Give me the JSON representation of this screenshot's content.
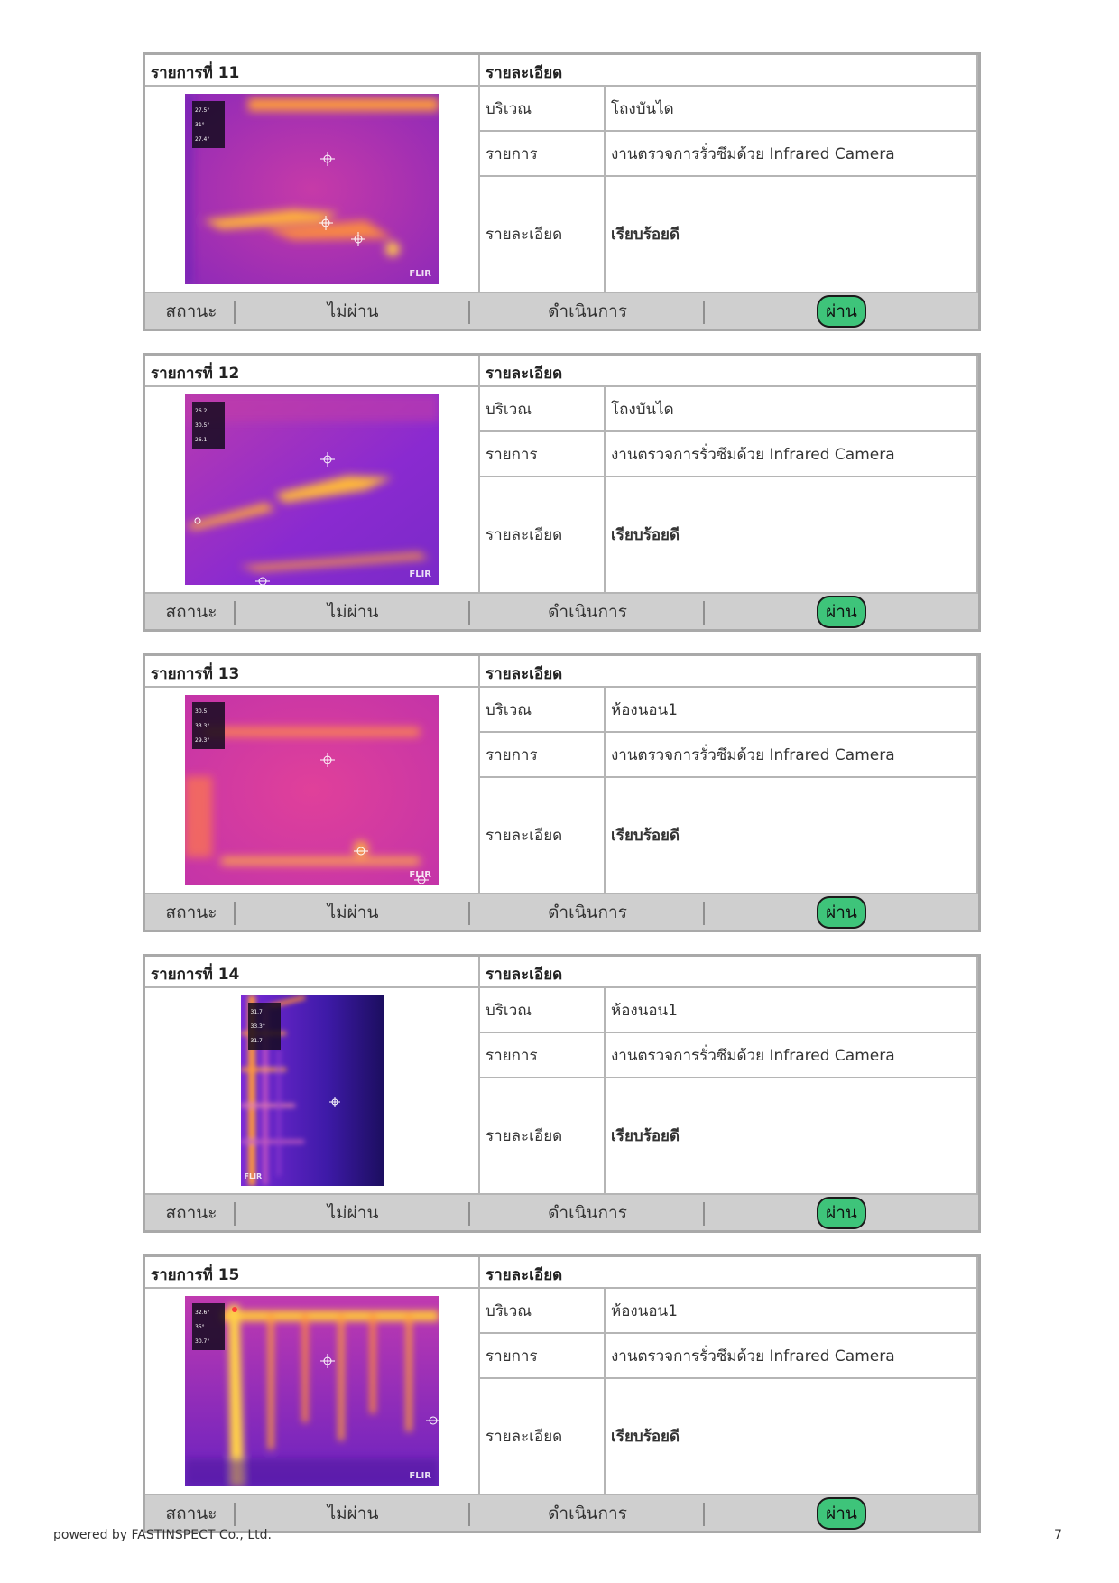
{
  "labels": {
    "detail_header": "รายละเอียด",
    "area": "บริเวณ",
    "item": "รายการ",
    "detail": "รายละเอียด",
    "status": "สถานะ",
    "fail": "ไม่ผ่าน",
    "in_progress": "ดำเนินการ",
    "pass": "ผ่าน",
    "brand": "FLIR"
  },
  "items": [
    {
      "title": "รายการที่ 11",
      "area": "โถงบันได",
      "task": "งานตรวจการรั่วซึมด้วย Infrared Camera",
      "result": "เรียบร้อยดี",
      "readings": [
        "27.5°",
        "31°",
        "27.4°"
      ],
      "selected_status": "pass"
    },
    {
      "title": "รายการที่ 12",
      "area": "โถงบันได",
      "task": "งานตรวจการรั่วซึมด้วย Infrared Camera",
      "result": "เรียบร้อยดี",
      "readings": [
        "26.2",
        "30.5°",
        "26.1"
      ],
      "selected_status": "pass"
    },
    {
      "title": "รายการที่ 13",
      "area": "ห้องนอน1",
      "task": "งานตรวจการรั่วซึมด้วย Infrared Camera",
      "result": "เรียบร้อยดี",
      "readings": [
        "30.5",
        "33.3°",
        "29.3°"
      ],
      "selected_status": "pass"
    },
    {
      "title": "รายการที่ 14",
      "area": "ห้องนอน1",
      "task": "งานตรวจการรั่วซึมด้วย Infrared Camera",
      "result": "เรียบร้อยดี",
      "readings": [
        "31.7",
        "33.3°",
        "31.7"
      ],
      "selected_status": "pass"
    },
    {
      "title": "รายการที่ 15",
      "area": "ห้องนอน1",
      "task": "งานตรวจการรั่วซึมด้วย Infrared Camera",
      "result": "เรียบร้อยดี",
      "readings": [
        "32.6°",
        "35°",
        "30.7°"
      ],
      "selected_status": "pass"
    }
  ],
  "footer": {
    "powered_by": "powered by FASTINSPECT Co., Ltd.",
    "page_number": "7"
  },
  "colors": {
    "pass_badge": "#3ec47a",
    "status_bar": "#cfcfcf",
    "thermal_cold": "#4a1fb8",
    "thermal_mid": "#b02aa5",
    "thermal_hot": "#ffd23a"
  }
}
